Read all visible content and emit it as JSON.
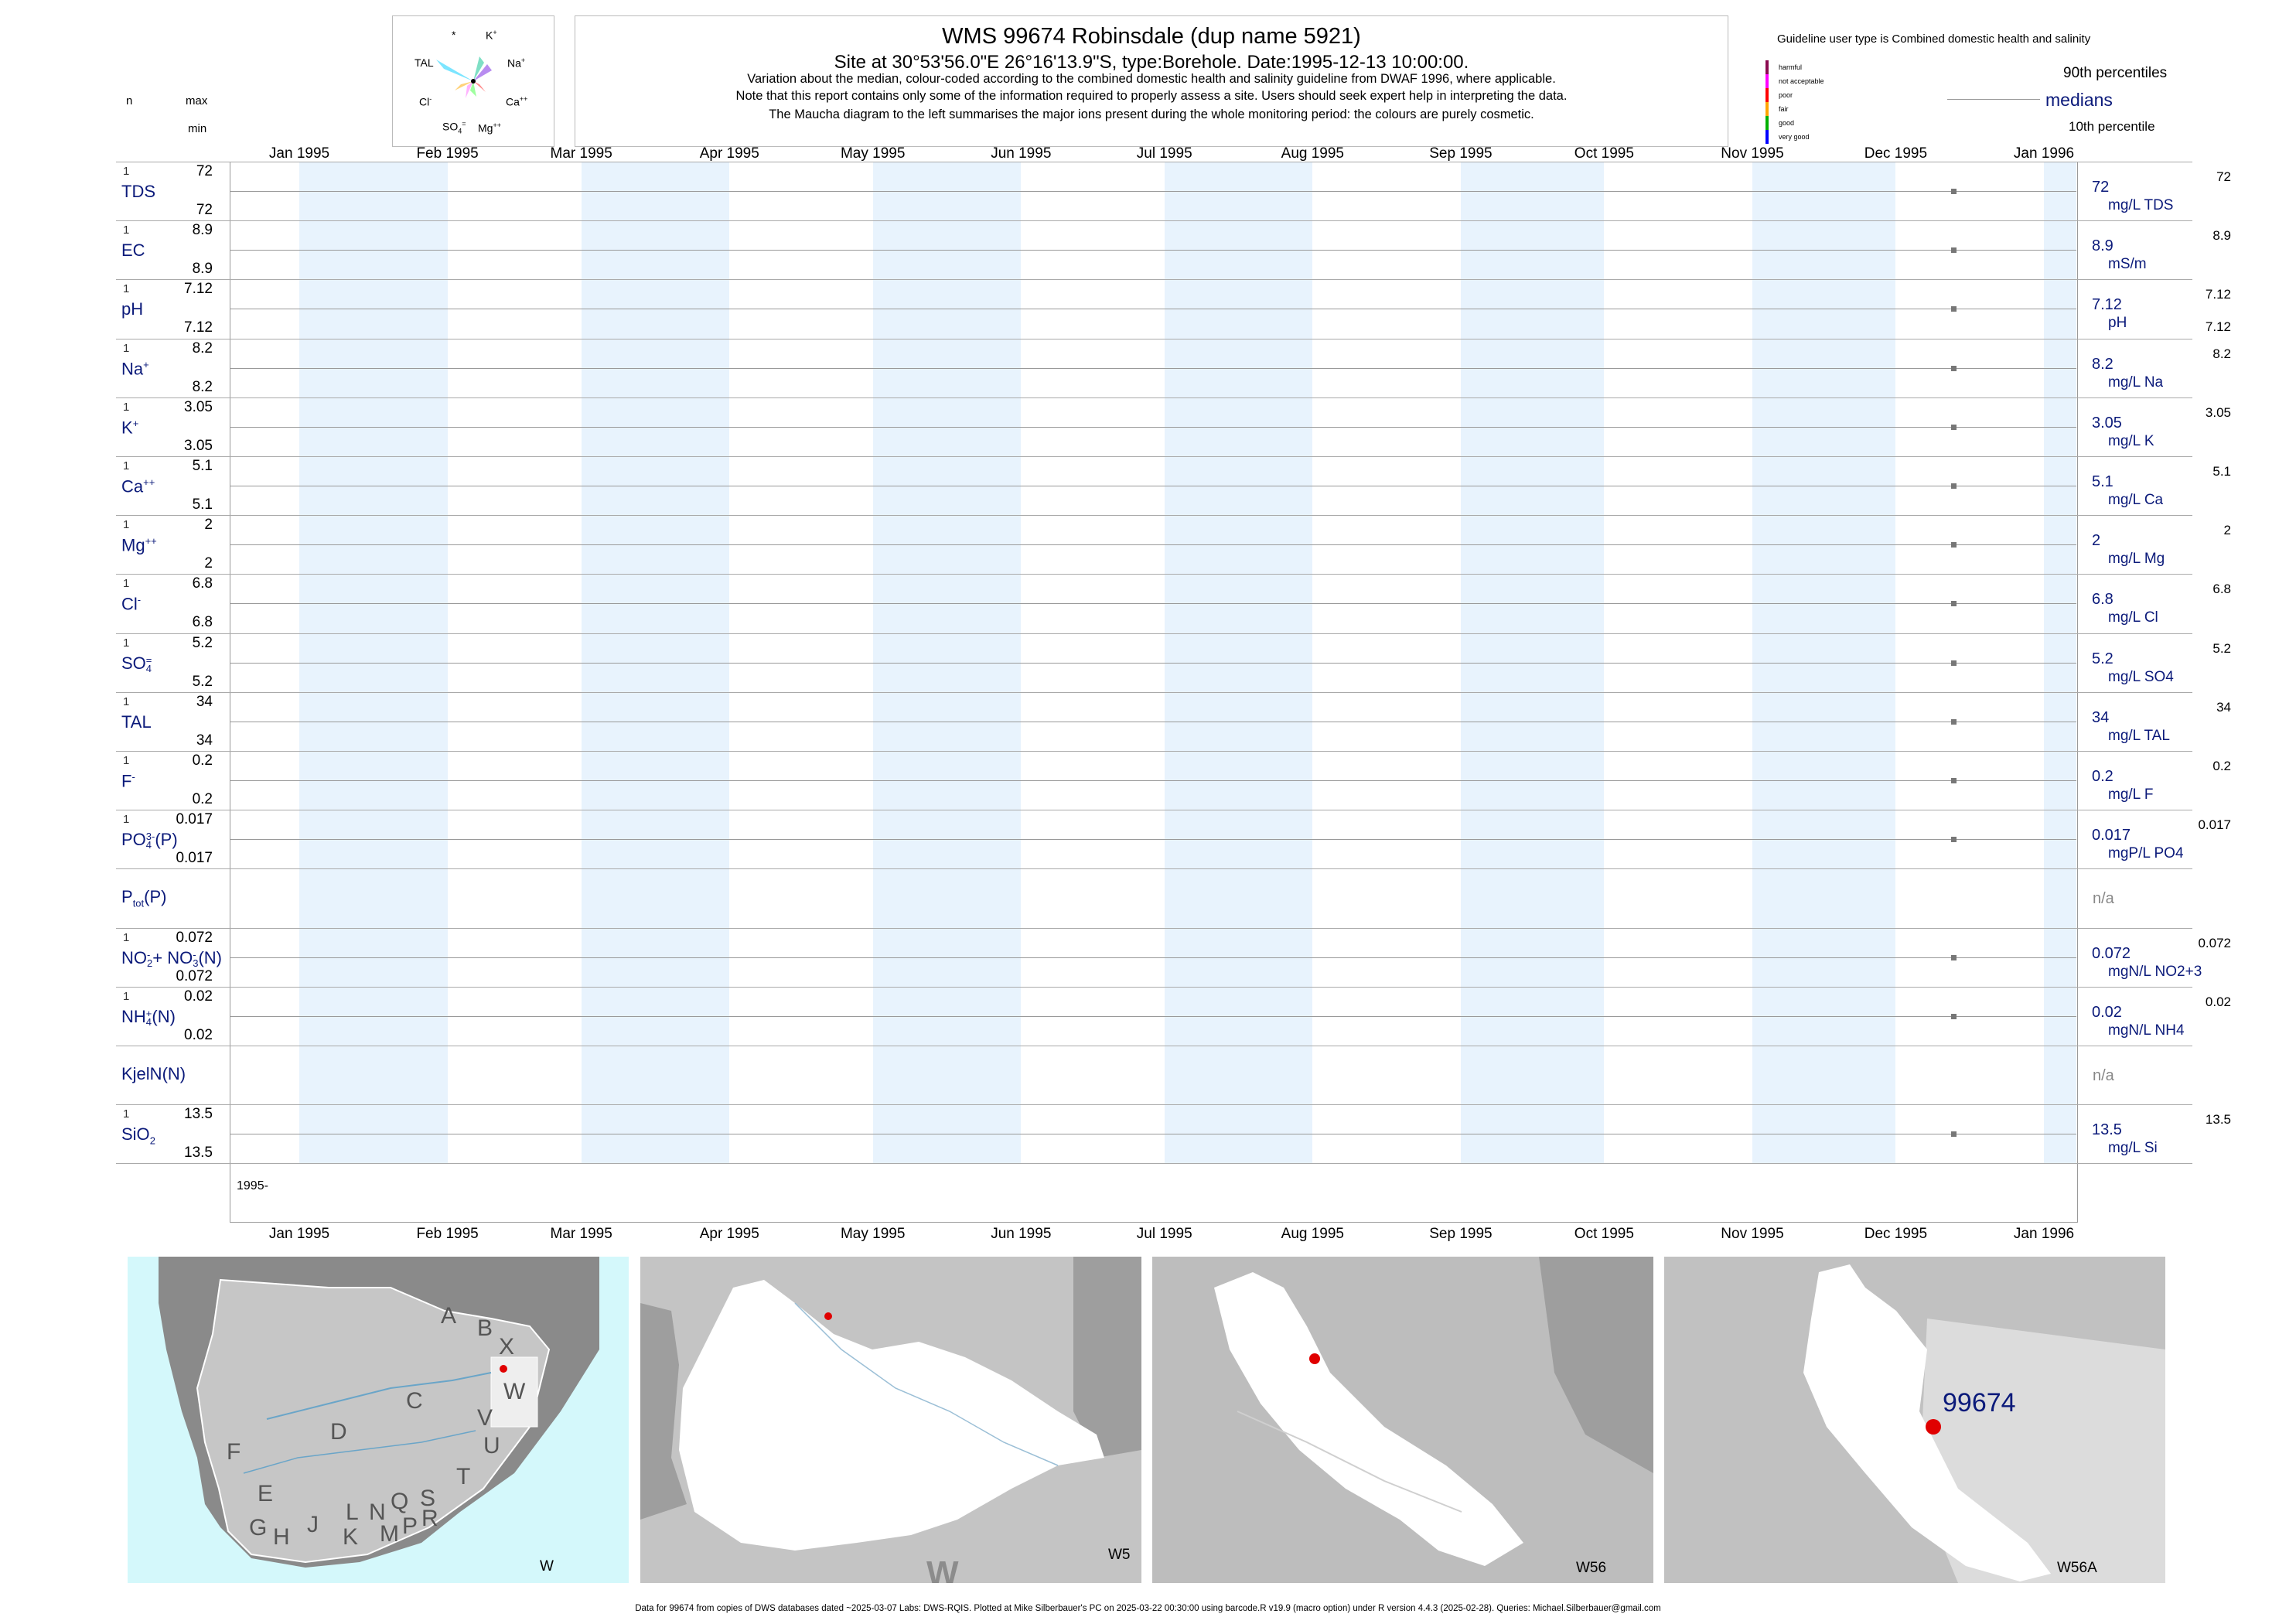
{
  "header": {
    "title": "WMS 99674  Robinsdale (dup name 5921)",
    "site": "Site at 30°53'56.0\"E 26°16'13.9\"S, type:Borehole. Date:1995-12-13 10:00:00.",
    "note1": "Variation about the median,  colour-coded according to the combined domestic health and salinity guideline from DWAF 1996, where applicable.",
    "note2": "Note that this report contains only some of the information required to properly assess a site. Users should seek expert help in interpreting the data.",
    "note3": "The Maucha diagram to the left summarises the major ions present during the whole monitoring period: the colours are purely cosmetic."
  },
  "left_header": {
    "n": "n",
    "max": "max",
    "min": "min"
  },
  "maucha": {
    "star": "*",
    "k": "K",
    "k_sup": "+",
    "na": "Na",
    "na_sup": "+",
    "tal": "TAL",
    "cl": "Cl",
    "cl_sup": "-",
    "ca": "Ca",
    "ca_sup": "++",
    "so4": "SO",
    "so4_sub": "4",
    "so4_sup": "=",
    "mg": "Mg",
    "mg_sup": "++"
  },
  "legend": {
    "guideline": "Guideline user type is Combined domestic health and salinity",
    "p90": "90th percentiles",
    "medians": "medians",
    "p10": "10th percentile",
    "classes": [
      {
        "label": "harmful",
        "color": "#8b0a50"
      },
      {
        "label": "not acceptable",
        "color": "#ff00ff"
      },
      {
        "label": "poor",
        "color": "#ff0000"
      },
      {
        "label": "fair",
        "color": "#ffa500"
      },
      {
        "label": "good",
        "color": "#00b000"
      },
      {
        "label": "very good",
        "color": "#0000ff"
      }
    ]
  },
  "axis": {
    "months": [
      "Jan 1995",
      "Feb 1995",
      "Mar 1995",
      "Apr 1995",
      "May 1995",
      "Jun 1995",
      "Jul 1995",
      "Aug 1995",
      "Sep 1995",
      "Oct 1995",
      "Nov 1995",
      "Dec 1995",
      "Jan 1996"
    ],
    "year_label": "1995-"
  },
  "chart_data": {
    "type": "scatter",
    "x_range": [
      "1995-01-01",
      "1996-01-01"
    ],
    "sample_date": "1995-12-13",
    "series": [
      {
        "label": "TDS",
        "n": "1",
        "max": "72",
        "min": "72",
        "median": "72",
        "unit": "mg/L TDS",
        "rmax": "72",
        "rmin": "",
        "value": 72
      },
      {
        "label": "EC",
        "n": "1",
        "max": "8.9",
        "min": "8.9",
        "median": "8.9",
        "unit": "mS/m",
        "rmax": "8.9",
        "rmin": "",
        "value": 8.9
      },
      {
        "label": "pH",
        "n": "1",
        "max": "7.12",
        "min": "7.12",
        "median": "7.12",
        "unit": "pH",
        "rmax": "7.12",
        "rmin": "7.12",
        "value": 7.12
      },
      {
        "label": "Na",
        "sup": "+",
        "n": "1",
        "max": "8.2",
        "min": "8.2",
        "median": "8.2",
        "unit": "mg/L Na",
        "rmax": "8.2",
        "rmin": "",
        "value": 8.2
      },
      {
        "label": "K",
        "sup": "+",
        "n": "1",
        "max": "3.05",
        "min": "3.05",
        "median": "3.05",
        "unit": "mg/L K",
        "rmax": "3.05",
        "rmin": "",
        "value": 3.05
      },
      {
        "label": "Ca",
        "sup": "++",
        "n": "1",
        "max": "5.1",
        "min": "5.1",
        "median": "5.1",
        "unit": "mg/L Ca",
        "rmax": "5.1",
        "rmin": "",
        "value": 5.1
      },
      {
        "label": "Mg",
        "sup": "++",
        "n": "1",
        "max": "2",
        "min": "2",
        "median": "2",
        "unit": "mg/L Mg",
        "rmax": "2",
        "rmin": "",
        "value": 2
      },
      {
        "label": "Cl",
        "sup": "-",
        "n": "1",
        "max": "6.8",
        "min": "6.8",
        "median": "6.8",
        "unit": "mg/L Cl",
        "rmax": "6.8",
        "rmin": "",
        "value": 6.8
      },
      {
        "label": "SO",
        "sub": "4",
        "sup": "=",
        "n": "1",
        "max": "5.2",
        "min": "5.2",
        "median": "5.2",
        "unit": "mg/L SO4",
        "rmax": "5.2",
        "rmin": "",
        "value": 5.2
      },
      {
        "label": "TAL",
        "n": "1",
        "max": "34",
        "min": "34",
        "median": "34",
        "unit": "mg/L TAL",
        "rmax": "34",
        "rmin": "",
        "value": 34
      },
      {
        "label": "F",
        "sup": "-",
        "n": "1",
        "max": "0.2",
        "min": "0.2",
        "median": "0.2",
        "unit": "mg/L F",
        "rmax": "0.2",
        "rmin": "",
        "value": 0.2
      },
      {
        "label": "PO",
        "sub": "4",
        "sup": "3-",
        "tail": "(P)",
        "n": "1",
        "max": "0.017",
        "min": "0.017",
        "median": "0.017",
        "unit": "mgP/L PO4",
        "rmax": "0.017",
        "rmin": "",
        "value": 0.017
      },
      {
        "label": "P",
        "sub": "tot",
        "tail": "(P)",
        "n": "",
        "max": "",
        "min": "",
        "median": "n/a",
        "unit": "",
        "rmax": "",
        "rmin": "",
        "value": null
      },
      {
        "label": "NO",
        "sub": "2",
        "sup": "-",
        "tail": "+ NO",
        "sub2": "3",
        "sup2": "-",
        "tail2": "(N)",
        "n": "1",
        "max": "0.072",
        "min": "0.072",
        "median": "0.072",
        "unit": "mgN/L NO2+3",
        "rmax": "0.072",
        "rmin": "",
        "value": 0.072
      },
      {
        "label": "NH",
        "sub": "4",
        "sup": "+",
        "tail": "(N)",
        "n": "1",
        "max": "0.02",
        "min": "0.02",
        "median": "0.02",
        "unit": "mgN/L NH4",
        "rmax": "0.02",
        "rmin": "",
        "value": 0.02
      },
      {
        "label": "KjelN(N)",
        "n": "",
        "max": "",
        "min": "",
        "median": "n/a",
        "unit": "",
        "rmax": "",
        "rmin": "",
        "value": null
      },
      {
        "label": "SiO",
        "sub": "2",
        "n": "1",
        "max": "13.5",
        "min": "13.5",
        "median": "13.5",
        "unit": "mg/L Si",
        "rmax": "13.5",
        "rmin": "",
        "value": 13.5
      }
    ]
  },
  "maps": [
    {
      "label": "W",
      "letters": [
        "A",
        "B",
        "X",
        "W",
        "C",
        "D",
        "V",
        "U",
        "F",
        "T",
        "E",
        "S",
        "Q",
        "L",
        "N",
        "R",
        "P",
        "G",
        "H",
        "J",
        "K",
        "M"
      ]
    },
    {
      "label": "W5",
      "watermark": "W"
    },
    {
      "label": "W56"
    },
    {
      "label": "W56A",
      "site": "99674"
    }
  ],
  "footer": "Data for 99674 from copies of DWS databases dated ~2025-03-07 Labs: DWS-RQIS. Plotted at Mike Silberbauer's PC on 2025-03-22 00:30:00 using barcode.R v19.9 (macro option) under R version 4.4.3 (2025-02-28). Queries: Michael.Silberbauer@gmail.com",
  "colors": {
    "label_blue": "#0b1a7a",
    "band": "#e8f3fd",
    "ocean": "#d4f8fb",
    "land": "#c9c9c9",
    "site_red": "#e00000"
  }
}
